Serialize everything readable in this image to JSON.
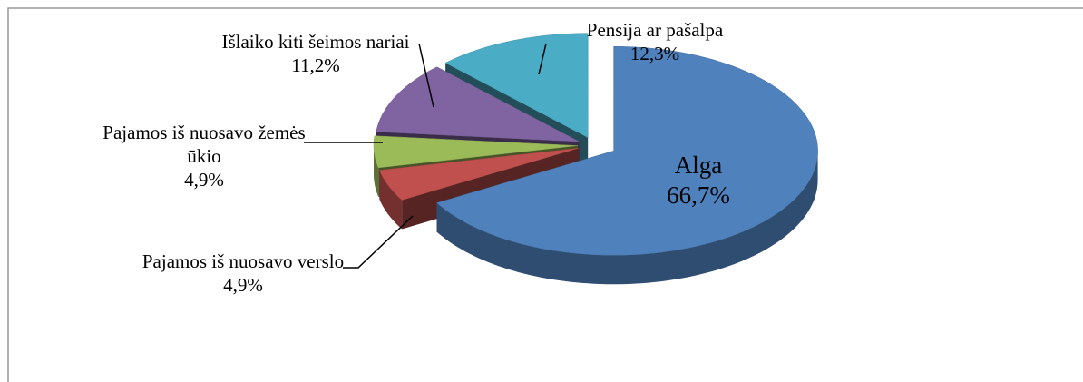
{
  "chart_data": {
    "type": "pie",
    "categories": [
      "Alga",
      "Pajamos iš nuosavo verslo",
      "Pajamos iš nuosavo žemės ūkio",
      "Išlaiko kiti šeimos nariai",
      "Pensija ar pašalpa"
    ],
    "values": [
      66.7,
      4.9,
      4.9,
      11.2,
      12.3
    ],
    "value_labels": [
      "66,7%",
      "4,9%",
      "4,9%",
      "11,2%",
      "12,3%"
    ],
    "colors": [
      "#4f81bd",
      "#c0504d",
      "#9bbb59",
      "#8064a2",
      "#4bacc6"
    ]
  }
}
